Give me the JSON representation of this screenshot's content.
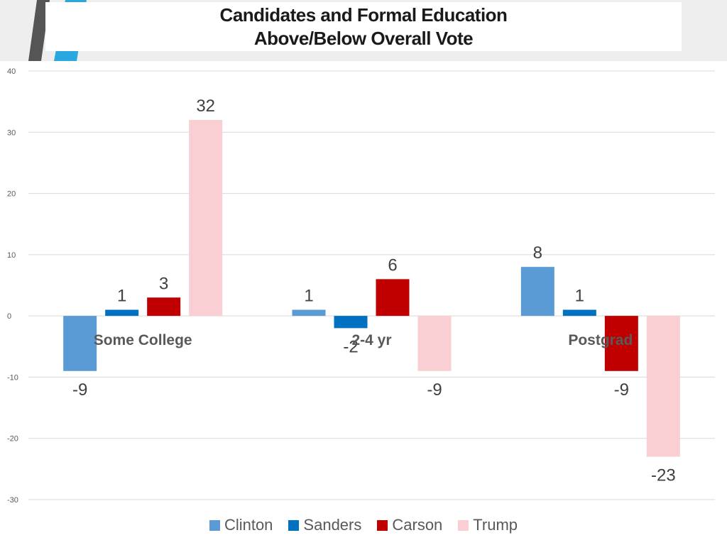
{
  "colors": {
    "clinton": "#5b9bd5",
    "sanders": "#0070c0",
    "carson": "#c00000",
    "trump": "#f9cfd3",
    "deco_dark": "#555555",
    "deco_blue": "#29a8e0"
  },
  "chart_data": {
    "type": "bar",
    "title": "Candidates and Formal Education Above/Below Overall Vote",
    "title_lines": [
      "Candidates and Formal Education",
      "Above/Below Overall Vote"
    ],
    "categories": [
      "Some College",
      "2-4 yr",
      "Postgrad"
    ],
    "series": [
      {
        "name": "Clinton",
        "color": "#5b9bd5",
        "values": [
          -9,
          1,
          8
        ]
      },
      {
        "name": "Sanders",
        "color": "#0070c0",
        "values": [
          1,
          -2,
          1
        ]
      },
      {
        "name": "Carson",
        "color": "#c00000",
        "values": [
          3,
          6,
          -9
        ]
      },
      {
        "name": "Trump",
        "color": "#f9cfd3",
        "values": [
          32,
          -9,
          -23
        ]
      }
    ],
    "ylim": [
      -30,
      40
    ],
    "yticks": [
      40,
      30,
      20,
      10,
      0,
      -10,
      -20,
      -30
    ],
    "grid": true,
    "legend": "bottom",
    "xlabel": "",
    "ylabel": ""
  }
}
